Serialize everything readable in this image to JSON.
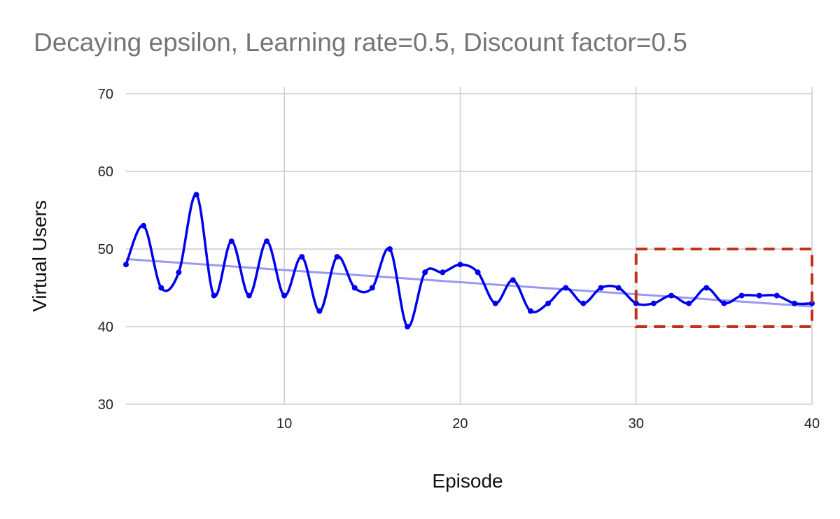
{
  "chart_data": {
    "type": "line",
    "title": "Decaying epsilon, Learning rate=0.5, Discount factor=0.5",
    "xlabel": "Episode",
    "ylabel": "Virtual Users",
    "xlim": [
      1,
      40
    ],
    "ylim": [
      30,
      70
    ],
    "x_ticks": [
      10,
      20,
      30,
      40
    ],
    "y_ticks": [
      30,
      40,
      50,
      60,
      70
    ],
    "grid": true,
    "legend": "none",
    "series": [
      {
        "x": [
          1,
          2,
          3,
          4,
          5,
          6,
          7,
          8,
          9,
          10,
          11,
          12,
          13,
          14,
          15,
          16,
          17,
          18,
          19,
          20,
          21,
          22,
          23,
          24,
          25,
          26,
          27,
          28,
          29,
          30,
          31,
          32,
          33,
          34,
          35,
          36,
          37,
          38,
          39,
          40
        ],
        "values": [
          48,
          53,
          45,
          47,
          57,
          44,
          51,
          44,
          51,
          44,
          49,
          42,
          49,
          45,
          45,
          50,
          40,
          47,
          47,
          48,
          47,
          43,
          46,
          42,
          43,
          45,
          43,
          45,
          45,
          43,
          43,
          44,
          43,
          45,
          43,
          44,
          44,
          44,
          43,
          43
        ],
        "color": "#0000ee",
        "smooth": true
      }
    ],
    "trendline": {
      "type": "linear",
      "start": [
        1,
        48.7
      ],
      "end": [
        40,
        42.6
      ],
      "color": "#9999f5"
    },
    "highlight_box": {
      "x_range": [
        30,
        40
      ],
      "y_range": [
        40,
        50
      ],
      "color": "#c0321c",
      "style": "dashed"
    }
  }
}
